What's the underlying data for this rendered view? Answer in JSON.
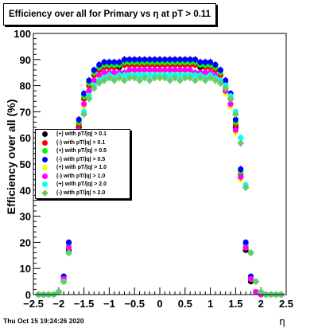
{
  "title": "Efficiency over all for Primary vs   η at pT > 0.11",
  "timestamp": "Thu Oct 15 19:24:26 2020",
  "chart_data": {
    "type": "scatter",
    "title": "Efficiency over all for Primary vs   η at pT > 0.11",
    "xlabel": "η",
    "ylabel": "Efficiency over all (%)",
    "xlim": [
      -2.5,
      2.5
    ],
    "ylim": [
      0,
      100
    ],
    "xticks": [
      -2.5,
      -2,
      -1.5,
      -1,
      -0.5,
      0,
      0.5,
      1,
      1.5,
      2,
      2.5
    ],
    "xtick_labels": [
      "−2.5",
      "−2",
      "−1.5",
      "−1",
      "−0.5",
      "0",
      "0.5",
      "1",
      "1.5",
      "2",
      "2.5"
    ],
    "yticks": [
      0,
      10,
      20,
      30,
      40,
      50,
      60,
      70,
      80,
      90,
      100
    ],
    "ytick_labels": [
      "0",
      "10",
      "20",
      "30",
      "40",
      "50",
      "60",
      "70",
      "80",
      "90",
      "100"
    ],
    "grid": false,
    "legend_position": "left",
    "x": [
      -2.4,
      -2.3,
      -2.2,
      -2.1,
      -2.0,
      -1.9,
      -1.8,
      -1.7,
      -1.6,
      -1.5,
      -1.4,
      -1.3,
      -1.2,
      -1.1,
      -1.0,
      -0.9,
      -0.8,
      -0.7,
      -0.6,
      -0.5,
      -0.4,
      -0.3,
      -0.2,
      -0.1,
      0.0,
      0.1,
      0.2,
      0.3,
      0.4,
      0.5,
      0.6,
      0.7,
      0.8,
      0.9,
      1.0,
      1.1,
      1.2,
      1.3,
      1.4,
      1.5,
      1.6,
      1.7,
      1.8,
      1.9,
      2.0,
      2.1,
      2.2,
      2.3,
      2.4
    ],
    "series": [
      {
        "name": "(+) with pT/|q| > 0.1",
        "color": "#000000",
        "marker": "circle",
        "values": [
          0,
          0,
          0,
          0,
          1,
          5,
          17,
          45,
          64,
          75,
          80,
          84,
          86,
          87,
          87,
          87,
          87,
          88,
          88,
          88,
          88,
          88,
          88,
          88,
          88,
          88,
          88,
          88,
          88,
          88,
          88,
          88,
          87,
          87,
          87,
          86,
          84,
          80,
          75,
          64,
          45,
          17,
          5,
          1,
          0,
          0,
          0,
          0,
          0
        ]
      },
      {
        "name": "(-) with pT/|q| > 0.1",
        "color": "#ff0000",
        "marker": "circle",
        "values": [
          0,
          0,
          0,
          0,
          1,
          6,
          18,
          46,
          65,
          75,
          80,
          84,
          86,
          87,
          87,
          87,
          88,
          88,
          88,
          88,
          88,
          88,
          88,
          88,
          88,
          88,
          88,
          88,
          88,
          88,
          88,
          88,
          88,
          87,
          87,
          86,
          84,
          80,
          75,
          65,
          46,
          18,
          6,
          1,
          0,
          0,
          0,
          0,
          0
        ]
      },
      {
        "name": "(+) with pT/|q| > 0.5",
        "color": "#00ff00",
        "marker": "circle",
        "values": [
          0,
          0,
          0,
          0,
          1,
          6,
          19,
          47,
          66,
          76,
          81,
          85,
          87,
          88,
          88,
          88,
          88,
          89,
          89,
          89,
          89,
          89,
          89,
          89,
          89,
          89,
          89,
          89,
          89,
          89,
          89,
          89,
          88,
          88,
          88,
          87,
          85,
          81,
          76,
          66,
          47,
          19,
          6,
          1,
          0,
          0,
          0,
          0,
          0
        ]
      },
      {
        "name": "(-) with pT/|q| > 0.5",
        "color": "#0000ff",
        "marker": "circle",
        "values": [
          0,
          0,
          0,
          0,
          1,
          7,
          20,
          48,
          67,
          77,
          82,
          86,
          88,
          89,
          89,
          89,
          89,
          90,
          90,
          90,
          90,
          90,
          90,
          90,
          90,
          90,
          90,
          90,
          90,
          90,
          90,
          90,
          89,
          89,
          89,
          88,
          86,
          82,
          77,
          67,
          48,
          20,
          7,
          1,
          0,
          0,
          0,
          0,
          0
        ]
      },
      {
        "name": "(+) with pT/|q| > 1.0",
        "color": "#ffff00",
        "marker": "circle",
        "values": [
          0,
          0,
          0,
          0,
          1,
          6,
          18,
          44,
          62,
          72,
          77,
          81,
          83,
          84,
          84,
          84,
          84,
          85,
          85,
          85,
          85,
          85,
          85,
          85,
          85,
          85,
          85,
          85,
          85,
          85,
          85,
          85,
          84,
          84,
          84,
          83,
          81,
          77,
          72,
          62,
          44,
          18,
          6,
          1,
          0,
          0,
          0,
          0,
          0
        ]
      },
      {
        "name": "(-) with pT/|q| > 1.0",
        "color": "#ff00ff",
        "marker": "circle",
        "values": [
          0,
          0,
          0,
          0,
          1,
          6,
          18,
          45,
          63,
          73,
          78,
          82,
          84,
          85,
          85,
          85,
          85,
          85,
          86,
          86,
          86,
          86,
          86,
          86,
          86,
          86,
          86,
          86,
          86,
          86,
          86,
          85,
          85,
          85,
          85,
          84,
          82,
          78,
          73,
          63,
          45,
          18,
          6,
          1,
          0,
          0,
          0,
          0,
          0
        ]
      },
      {
        "name": "(+) with pT/|q| > 2.0",
        "color": "#00ffff",
        "marker": "circle",
        "values": [
          0,
          0,
          0,
          0,
          1,
          5,
          16,
          42,
          60,
          70,
          76,
          80,
          82,
          83,
          84,
          83,
          84,
          84,
          84,
          84,
          84,
          84,
          84,
          84,
          84,
          84,
          84,
          84,
          84,
          84,
          84,
          84,
          84,
          83,
          84,
          83,
          82,
          80,
          76,
          70,
          60,
          42,
          16,
          5,
          1,
          0,
          0,
          0,
          0
        ]
      },
      {
        "name": "(-) with pT/|q| > 2.0",
        "color": "#66cc66",
        "marker": "diamond",
        "values": [
          0,
          0,
          0,
          0,
          1,
          5,
          16,
          41,
          58,
          69,
          75,
          79,
          81,
          82,
          83,
          82,
          83,
          82,
          83,
          83,
          82,
          83,
          82,
          83,
          83,
          83,
          82,
          83,
          82,
          83,
          83,
          82,
          83,
          82,
          83,
          82,
          81,
          79,
          75,
          69,
          58,
          41,
          16,
          5,
          1,
          0,
          0,
          0,
          0
        ]
      }
    ]
  }
}
